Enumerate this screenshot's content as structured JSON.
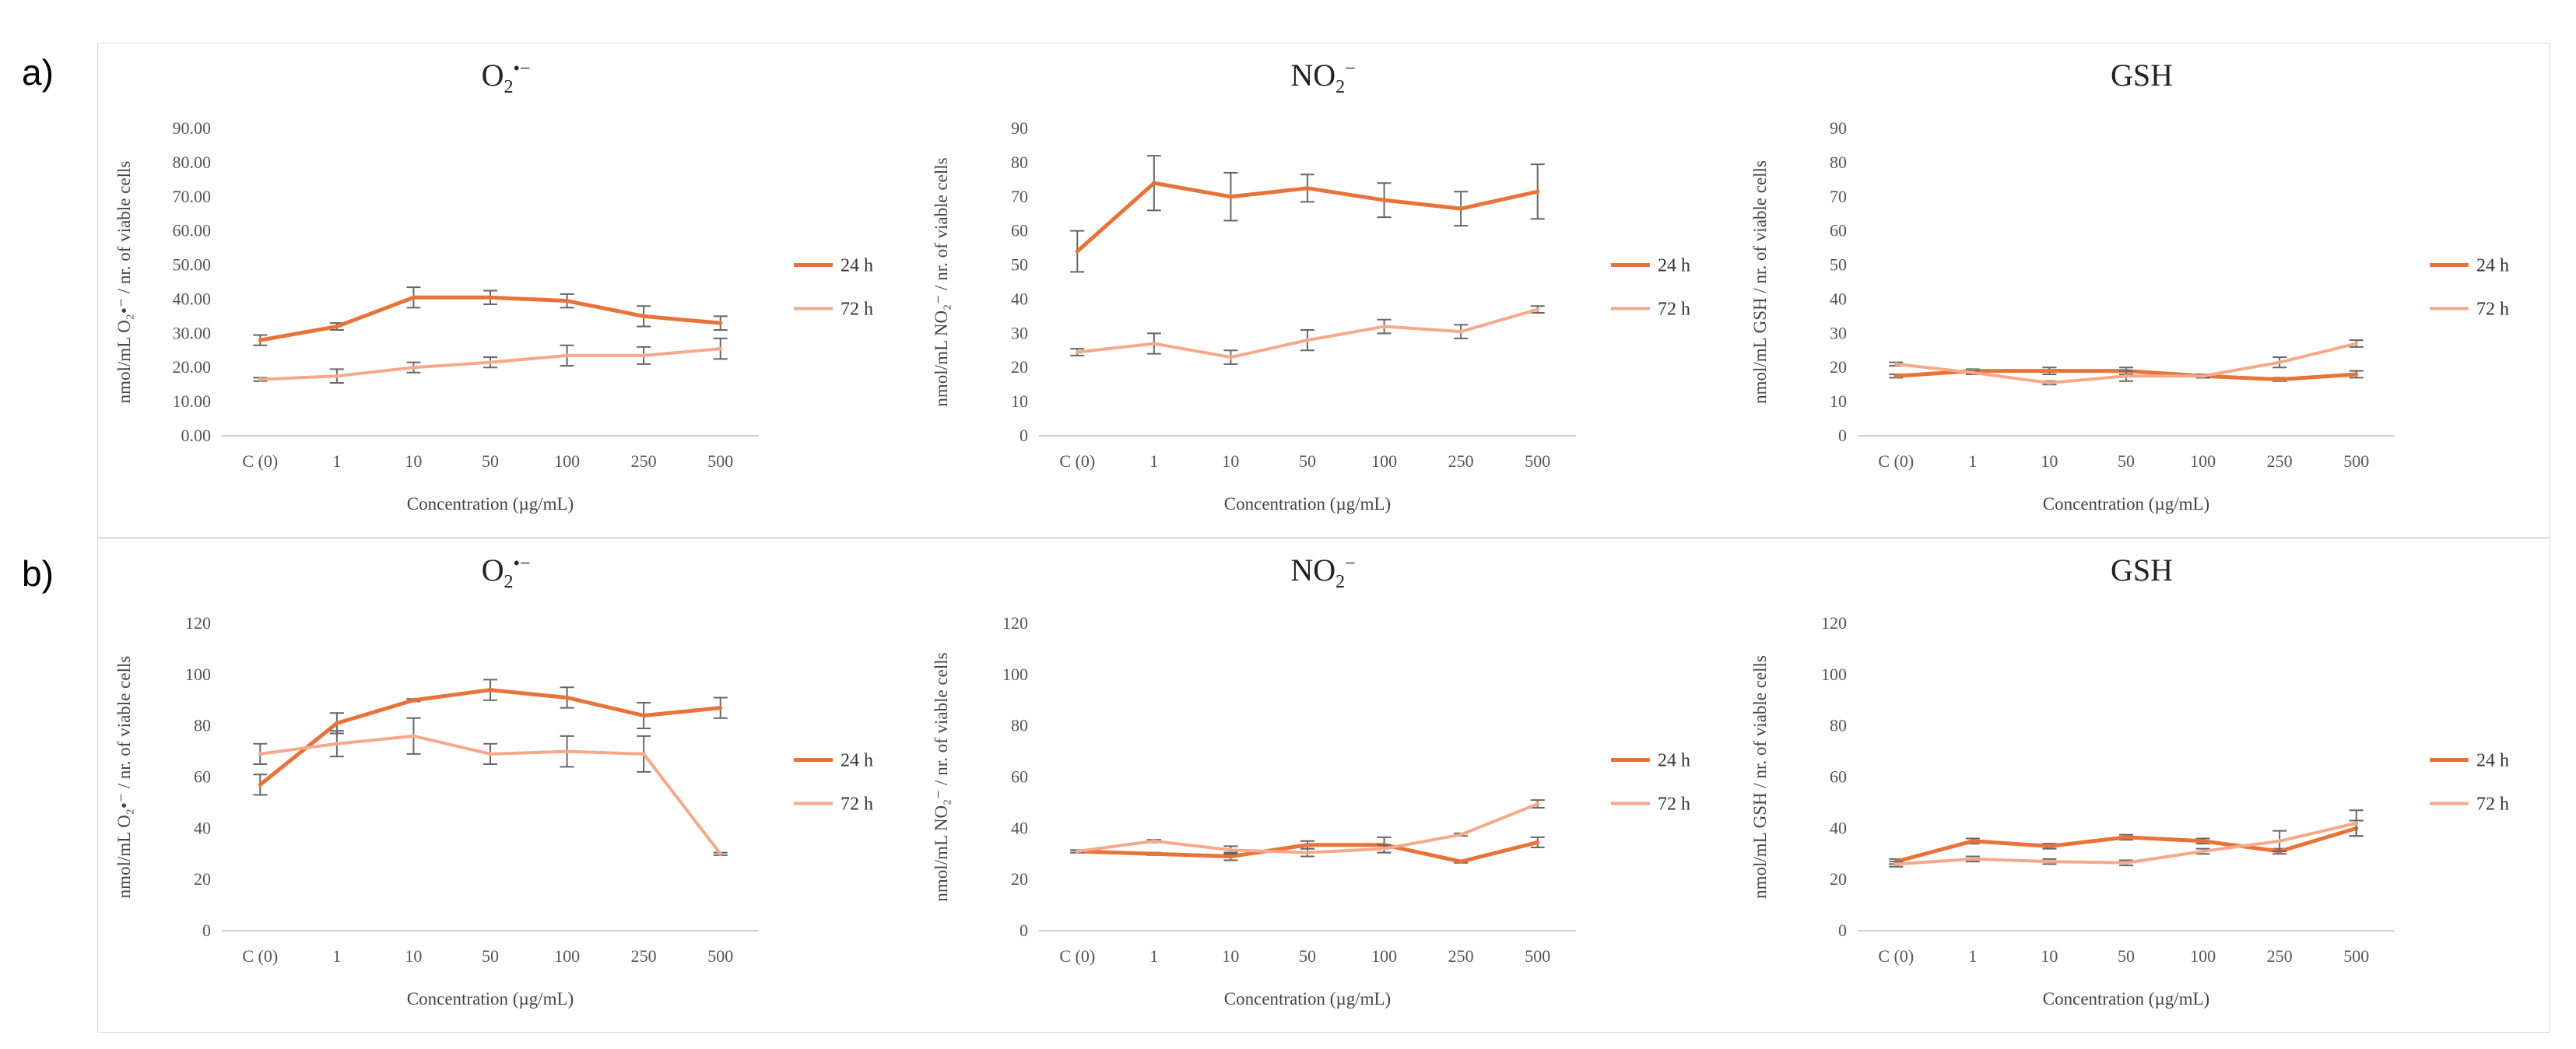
{
  "figure": {
    "row_labels": [
      "a)",
      "b)"
    ]
  },
  "chart_data": [
    {
      "type": "line",
      "row": 0,
      "title": {
        "main": "O",
        "sub": "2",
        "sup": "•−"
      },
      "xlabel": "Concentration (µg/mL)",
      "ylabel": "nmol/mL O₂•⁻ / nr. of viable cells",
      "categories": [
        "C (0)",
        "1",
        "10",
        "50",
        "100",
        "250",
        "500"
      ],
      "yticks": [
        "0.00",
        "10.00",
        "20.00",
        "30.00",
        "40.00",
        "50.00",
        "60.00",
        "70.00",
        "80.00",
        "90.00"
      ],
      "ylim": [
        0,
        90
      ],
      "series": [
        {
          "name": "24 h",
          "color": "#e8733a",
          "values": [
            28,
            32,
            40.5,
            40.5,
            39.5,
            35,
            33
          ],
          "errors": [
            1.5,
            1,
            3,
            2,
            2,
            3,
            2
          ]
        },
        {
          "name": "72 h",
          "color": "#f5a98a",
          "values": [
            16.5,
            17.5,
            20,
            21.5,
            23.5,
            23.5,
            25.5
          ],
          "errors": [
            0.5,
            2,
            1.5,
            1.5,
            3,
            2.5,
            3
          ]
        }
      ]
    },
    {
      "type": "line",
      "row": 0,
      "title": {
        "main": "NO",
        "sub": "2",
        "sup": "−"
      },
      "xlabel": "Concentration (µg/mL)",
      "ylabel": "nmol/mL NO₂⁻ / nr. of viable cells",
      "categories": [
        "C (0)",
        "1",
        "10",
        "50",
        "100",
        "250",
        "500"
      ],
      "yticks": [
        "0",
        "10",
        "20",
        "30",
        "40",
        "50",
        "60",
        "70",
        "80",
        "90"
      ],
      "ylim": [
        0,
        90
      ],
      "series": [
        {
          "name": "24 h",
          "color": "#e8733a",
          "values": [
            54,
            74,
            70,
            72.5,
            69,
            66.5,
            71.5
          ],
          "errors": [
            6,
            8,
            7,
            4,
            5,
            5,
            8
          ]
        },
        {
          "name": "72 h",
          "color": "#f5a98a",
          "values": [
            24.5,
            27,
            23,
            28,
            32,
            30.5,
            37
          ],
          "errors": [
            1,
            3,
            2,
            3,
            2,
            2,
            1
          ]
        }
      ]
    },
    {
      "type": "line",
      "row": 0,
      "title": {
        "main": "GSH",
        "sub": "",
        "sup": ""
      },
      "xlabel": "Concentration (µg/mL)",
      "ylabel": "nmol/mL GSH / nr. of viable cells",
      "categories": [
        "C (0)",
        "1",
        "10",
        "50",
        "100",
        "250",
        "500"
      ],
      "yticks": [
        "0",
        "10",
        "20",
        "30",
        "40",
        "50",
        "60",
        "70",
        "80",
        "90"
      ],
      "ylim": [
        0,
        90
      ],
      "series": [
        {
          "name": "24 h",
          "color": "#e8733a",
          "values": [
            17.5,
            19,
            19,
            19,
            17.5,
            16.5,
            18
          ],
          "errors": [
            0.5,
            0.5,
            1,
            1,
            0.5,
            0.5,
            1
          ]
        },
        {
          "name": "72 h",
          "color": "#f5a98a",
          "values": [
            21,
            18.5,
            15.5,
            17.5,
            17.5,
            21.5,
            27
          ],
          "errors": [
            0.5,
            0.5,
            0.5,
            1.5,
            0.5,
            1.5,
            1
          ]
        }
      ]
    },
    {
      "type": "line",
      "row": 1,
      "title": {
        "main": "O",
        "sub": "2",
        "sup": "•−"
      },
      "xlabel": "Concentration (µg/mL)",
      "ylabel": "nmol/mL O₂•⁻ / nr. of viable cells",
      "categories": [
        "C (0)",
        "1",
        "10",
        "50",
        "100",
        "250",
        "500"
      ],
      "yticks": [
        "0",
        "20",
        "40",
        "60",
        "80",
        "100",
        "120"
      ],
      "ylim": [
        0,
        120
      ],
      "series": [
        {
          "name": "24 h",
          "color": "#e8733a",
          "values": [
            57,
            81,
            90,
            94,
            91,
            84,
            87
          ],
          "errors": [
            4,
            4,
            0.5,
            4,
            4,
            5,
            4
          ]
        },
        {
          "name": "72 h",
          "color": "#f5a98a",
          "values": [
            69,
            73,
            76,
            69,
            70,
            69,
            30
          ],
          "errors": [
            4,
            5,
            7,
            4,
            6,
            7,
            0.5
          ]
        }
      ]
    },
    {
      "type": "line",
      "row": 1,
      "title": {
        "main": "NO",
        "sub": "2",
        "sup": "−"
      },
      "xlabel": "Concentration (µg/mL)",
      "ylabel": "nmol/mL NO₂⁻ / nr. of viable cells",
      "categories": [
        "C (0)",
        "1",
        "10",
        "50",
        "100",
        "250",
        "500"
      ],
      "yticks": [
        "0",
        "20",
        "40",
        "60",
        "80",
        "100",
        "120"
      ],
      "ylim": [
        0,
        120
      ],
      "series": [
        {
          "name": "24 h",
          "color": "#e8733a",
          "values": [
            31,
            30,
            29,
            33.5,
            33.5,
            27,
            34.5
          ],
          "errors": [
            0.5,
            0.5,
            1.5,
            1.5,
            3,
            0.5,
            2
          ]
        },
        {
          "name": "72 h",
          "color": "#f5a98a",
          "values": [
            31,
            35,
            31.5,
            30.5,
            32,
            37.5,
            49.5
          ],
          "errors": [
            0.5,
            0.5,
            1.5,
            1.5,
            1.5,
            0.5,
            1.5
          ]
        }
      ]
    },
    {
      "type": "line",
      "row": 1,
      "title": {
        "main": "GSH",
        "sub": "",
        "sup": ""
      },
      "xlabel": "Concentration (µg/mL)",
      "ylabel": "nmol/mL GSH / nr. of viable cells",
      "categories": [
        "C (0)",
        "1",
        "10",
        "50",
        "100",
        "250",
        "500"
      ],
      "yticks": [
        "0",
        "20",
        "40",
        "60",
        "80",
        "100",
        "120"
      ],
      "ylim": [
        0,
        120
      ],
      "series": [
        {
          "name": "24 h",
          "color": "#e8733a",
          "values": [
            27,
            35,
            33,
            36.5,
            35,
            31,
            40
          ],
          "errors": [
            1,
            1,
            1,
            1,
            1,
            1,
            3
          ]
        },
        {
          "name": "72 h",
          "color": "#f5a98a",
          "values": [
            26,
            28,
            27,
            26.5,
            31,
            35,
            42
          ],
          "errors": [
            1,
            1,
            1,
            1,
            1,
            4,
            5
          ]
        }
      ]
    }
  ]
}
